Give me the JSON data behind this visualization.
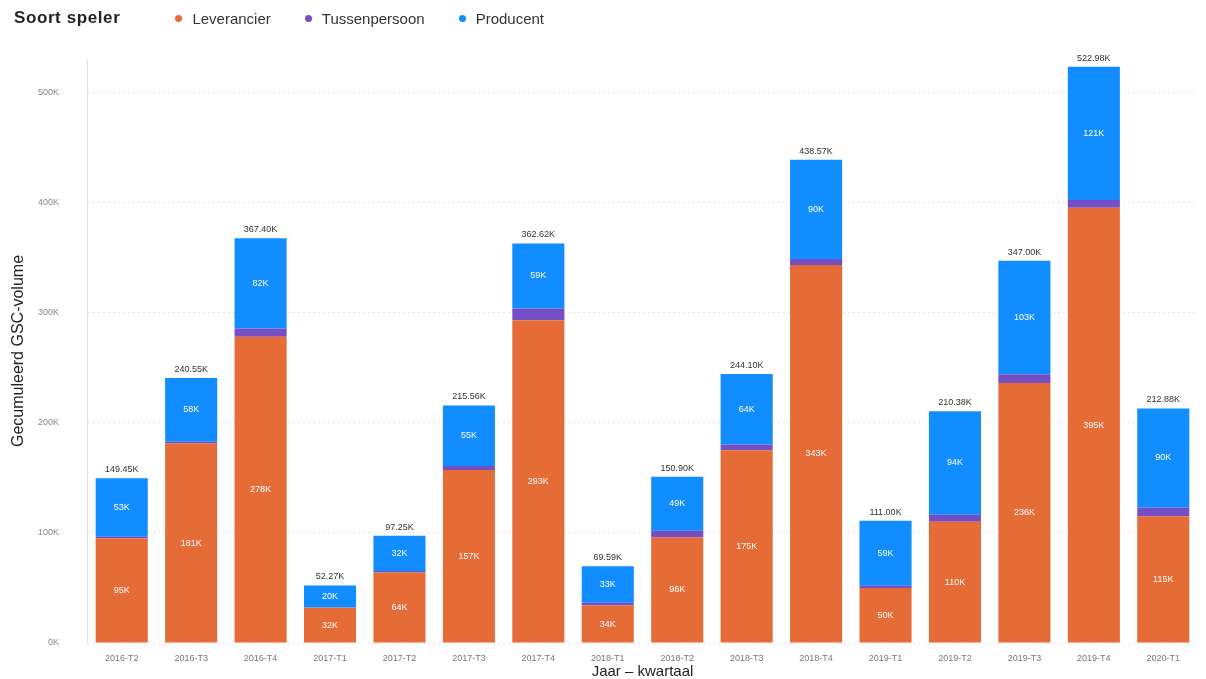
{
  "chart_data": {
    "type": "bar",
    "stacked": true,
    "legend": "top left",
    "legend_title": "Soort speler",
    "grid": "y",
    "xlabel": "Jaar – kwartaal",
    "ylabel": "Gecumuleerd GSC-volume",
    "categories": [
      "2016-T2",
      "2016-T3",
      "2016-T4",
      "2017-T1",
      "2017-T2",
      "2017-T3",
      "2017-T4",
      "2018-T1",
      "2018-T2",
      "2018-T3",
      "2018-T4",
      "2019-T1",
      "2019-T2",
      "2019-T3",
      "2019-T4",
      "2020-T1"
    ],
    "series": [
      {
        "name": "Leverancier",
        "color": "#e66c37",
        "values": [
          95000,
          181000,
          278000,
          32000,
          64000,
          157000,
          293000,
          34000,
          96000,
          175000,
          343000,
          50000,
          110000,
          236000,
          395000,
          115000
        ],
        "value_labels": [
          "95K",
          "181K",
          "278K",
          "32K",
          "64K",
          "157K",
          "293K",
          "34K",
          "96K",
          "175K",
          "343K",
          "50K",
          "110K",
          "236K",
          "395K",
          "115K"
        ]
      },
      {
        "name": "Tussenpersoon",
        "color": "#744ec2",
        "values": [
          1450,
          1550,
          7400,
          270,
          1250,
          3560,
          10620,
          2590,
          5900,
          5100,
          5570,
          2000,
          6380,
          8000,
          6980,
          7880
        ]
      },
      {
        "name": "Producent",
        "color": "#118dff",
        "values": [
          53000,
          58000,
          82000,
          20000,
          32000,
          55000,
          59000,
          33000,
          49000,
          64000,
          90000,
          59000,
          94000,
          103000,
          121000,
          90000
        ],
        "value_labels": [
          "53K",
          "58K",
          "82K",
          "20K",
          "32K",
          "55K",
          "59K",
          "33K",
          "49K",
          "64K",
          "90K",
          "59K",
          "94K",
          "103K",
          "121K",
          "90K"
        ]
      }
    ],
    "totals": [
      "149.45K",
      "240.55K",
      "367.40K",
      "52.27K",
      "97.25K",
      "215.56K",
      "362.62K",
      "69.59K",
      "150.90K",
      "244.10K",
      "438.57K",
      "111.00K",
      "210.38K",
      "347.00K",
      "522.98K",
      "212.88K"
    ],
    "ylim": [
      0,
      530000
    ],
    "yticks": [
      {
        "value": 0,
        "label": "0K"
      },
      {
        "value": 100000,
        "label": "100K"
      },
      {
        "value": 200000,
        "label": "200K"
      },
      {
        "value": 300000,
        "label": "300K"
      },
      {
        "value": 400000,
        "label": "400K"
      },
      {
        "value": 500000,
        "label": "500K"
      }
    ]
  }
}
